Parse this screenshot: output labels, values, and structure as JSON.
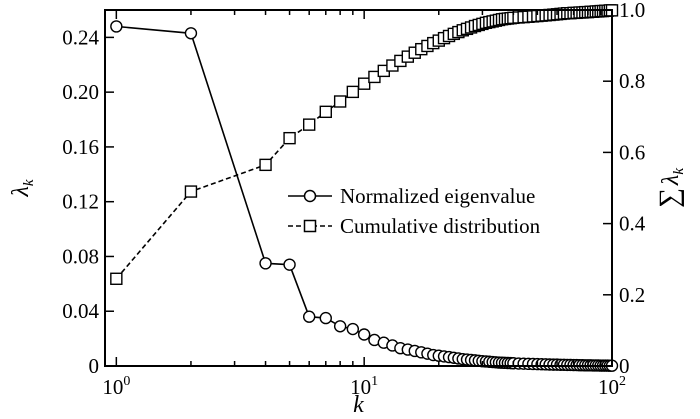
{
  "chart_data": {
    "type": "line",
    "xscale": "log",
    "xlim": [
      0.9,
      100
    ],
    "xticks": [
      1,
      10,
      100
    ],
    "xtick_labels": [
      {
        "base": "10",
        "exp": "0"
      },
      {
        "base": "10",
        "exp": "1"
      },
      {
        "base": "10",
        "exp": "2"
      }
    ],
    "xlabel": "k",
    "ylim_left": [
      0,
      0.26
    ],
    "yticks_left": [
      0,
      0.04,
      0.08,
      0.12,
      0.16,
      0.2,
      0.24
    ],
    "ytick_labels_left": [
      "0",
      "0.04",
      "0.08",
      "0.12",
      "0.16",
      "0.20",
      "0.24"
    ],
    "ylabel_left": "λk",
    "ylabel_left_main": "λ",
    "ylabel_left_sub": "k",
    "ylim_right": [
      0,
      1.0
    ],
    "yticks_right": [
      0,
      0.2,
      0.4,
      0.6,
      0.8,
      1.0
    ],
    "ytick_labels_right": [
      "0",
      "0.2",
      "0.4",
      "0.6",
      "0.8",
      "1.0"
    ],
    "ylabel_right": "∑λk",
    "ylabel_right_sum": "∑",
    "ylabel_right_main": "λ",
    "ylabel_right_sub": "k",
    "grid": false,
    "legend_position": "center-right",
    "x": [
      1,
      2,
      4,
      5,
      6,
      7,
      8,
      9,
      10,
      11,
      12,
      13,
      14,
      15,
      16,
      17,
      18,
      19,
      20,
      21,
      22,
      23,
      24,
      25,
      26,
      27,
      28,
      29,
      30,
      31,
      32,
      33,
      34,
      35,
      36,
      37,
      38,
      39,
      40,
      42,
      44,
      46,
      48,
      50,
      52,
      54,
      56,
      58,
      60,
      62,
      64,
      66,
      68,
      70,
      72,
      74,
      76,
      78,
      80,
      82,
      84,
      86,
      88,
      90,
      92,
      94,
      96,
      98,
      100
    ],
    "series": [
      {
        "name": "Normalized eigenvalue",
        "axis": "left",
        "marker": "circle",
        "linestyle": "solid",
        "values": [
          0.248,
          0.243,
          0.075,
          0.074,
          0.036,
          0.035,
          0.029,
          0.027,
          0.023,
          0.019,
          0.017,
          0.015,
          0.013,
          0.012,
          0.011,
          0.01,
          0.009,
          0.008,
          0.0075,
          0.007,
          0.0065,
          0.006,
          0.0055,
          0.005,
          0.0047,
          0.0044,
          0.0041,
          0.0038,
          0.0035,
          0.0033,
          0.0031,
          0.0029,
          0.0027,
          0.0025,
          0.0024,
          0.0023,
          0.0022,
          0.0021,
          0.002,
          0.0018,
          0.0017,
          0.0016,
          0.0015,
          0.0014,
          0.0013,
          0.0012,
          0.0011,
          0.001,
          0.001,
          0.0009,
          0.0009,
          0.0008,
          0.0008,
          0.0007,
          0.0007,
          0.0006,
          0.0006,
          0.0005,
          0.0005,
          0.0005,
          0.0004,
          0.0004,
          0.0004,
          0.0003,
          0.0003,
          0.0003,
          0.0003,
          0.0002,
          0.0002
        ]
      },
      {
        "name": "Cumulative distribution",
        "axis": "right",
        "marker": "square",
        "linestyle": "dashed",
        "values": [
          0.245,
          0.49,
          0.565,
          0.64,
          0.678,
          0.714,
          0.743,
          0.77,
          0.793,
          0.812,
          0.829,
          0.844,
          0.857,
          0.869,
          0.88,
          0.89,
          0.899,
          0.907,
          0.914,
          0.921,
          0.927,
          0.933,
          0.938,
          0.943,
          0.947,
          0.951,
          0.955,
          0.958,
          0.961,
          0.964,
          0.966,
          0.968,
          0.97,
          0.972,
          0.974,
          0.975,
          0.976,
          0.977,
          0.978,
          0.979,
          0.98,
          0.981,
          0.982,
          0.983,
          0.984,
          0.985,
          0.986,
          0.987,
          0.988,
          0.989,
          0.99,
          0.991,
          0.991,
          0.992,
          0.992,
          0.993,
          0.993,
          0.994,
          0.994,
          0.995,
          0.995,
          0.996,
          0.996,
          0.997,
          0.997,
          0.998,
          0.998,
          0.999,
          0.999
        ]
      }
    ]
  }
}
